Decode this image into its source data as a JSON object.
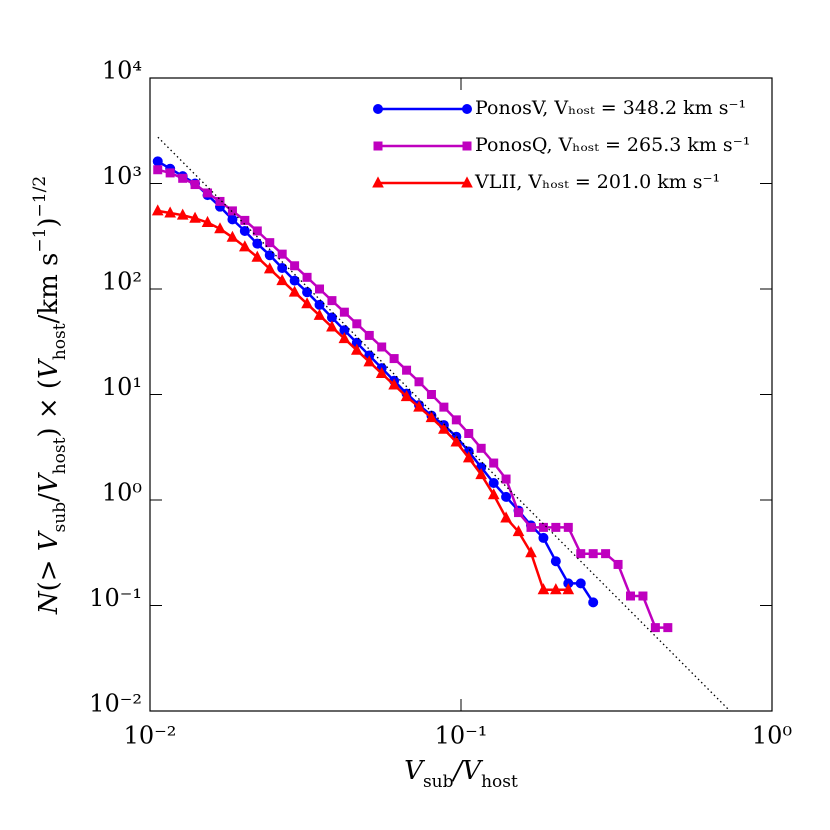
{
  "chart_data": {
    "type": "line",
    "xlabel": [
      "V",
      "sub",
      "/V",
      "host"
    ],
    "ylabel": [
      "N",
      "(> ",
      "V",
      "sub",
      "/",
      "V",
      "host",
      ") × (",
      "V",
      "host",
      "/km s",
      "−1",
      ")",
      "−1/2"
    ],
    "xscale": "log",
    "yscale": "log",
    "xlim": [
      0.01,
      1
    ],
    "ylim": [
      0.01,
      10000
    ],
    "xticks": [
      {
        "value": 0.01,
        "label": "10⁻²"
      },
      {
        "value": 0.1,
        "label": "10⁻¹"
      },
      {
        "value": 1,
        "label": "10⁰"
      }
    ],
    "yticks": [
      {
        "value": 0.01,
        "label": "10⁻²"
      },
      {
        "value": 0.1,
        "label": "10⁻¹"
      },
      {
        "value": 1,
        "label": "10⁰"
      },
      {
        "value": 10,
        "label": "10¹"
      },
      {
        "value": 100,
        "label": "10²"
      },
      {
        "value": 1000,
        "label": "10³"
      },
      {
        "value": 10000,
        "label": "10⁴"
      }
    ],
    "legend": "upper right",
    "series": [
      {
        "name": "PonosV, Vₕₒₛₜ = 348.2 km s⁻¹",
        "color": "#0000ff",
        "marker": "circle",
        "x": [
          0.01059,
          0.01161,
          0.01274,
          0.01396,
          0.01531,
          0.01679,
          0.01841,
          0.02018,
          0.02213,
          0.02427,
          0.02661,
          0.02917,
          0.03199,
          0.03508,
          0.03846,
          0.04217,
          0.04624,
          0.0507,
          0.05559,
          0.06095,
          0.06683,
          0.07328,
          0.08035,
          0.0881,
          0.09661,
          0.1059,
          0.1161,
          0.1274,
          0.1396,
          0.1531,
          0.1679,
          0.1841,
          0.2018,
          0.2213,
          0.2427,
          0.2661
        ],
        "values": [
          1622,
          1380,
          1175,
          1000,
          776,
          603,
          457,
          355,
          269,
          209,
          158,
          120,
          93.3,
          70.8,
          53.7,
          40.7,
          30.9,
          23.4,
          17.8,
          13.5,
          10.2,
          7.94,
          6.31,
          5.13,
          3.98,
          2.88,
          2.04,
          1.45,
          1.07,
          0.794,
          0.575,
          0.437,
          0.263,
          0.162,
          0.162,
          0.107
        ]
      },
      {
        "name": "PonosQ, Vₕₒₛₜ = 265.3 km s⁻¹",
        "color": "#bf00bf",
        "marker": "square",
        "x": [
          0.01059,
          0.01161,
          0.01274,
          0.01396,
          0.01531,
          0.01679,
          0.01841,
          0.02018,
          0.02213,
          0.02427,
          0.02661,
          0.02917,
          0.03199,
          0.03508,
          0.03846,
          0.04217,
          0.04624,
          0.0507,
          0.05559,
          0.06095,
          0.06683,
          0.07328,
          0.08035,
          0.0881,
          0.09661,
          0.1059,
          0.1161,
          0.1274,
          0.1396,
          0.1531,
          0.1679,
          0.1841,
          0.2018,
          0.2213,
          0.2427,
          0.2661,
          0.2917,
          0.3199,
          0.3508,
          0.3846,
          0.4217,
          0.4624
        ],
        "values": [
          1350,
          1260,
          1120,
          977,
          813,
          676,
          550,
          447,
          355,
          275,
          214,
          166,
          129,
          100,
          77.6,
          60.3,
          46.8,
          36.3,
          28.2,
          21.9,
          17.0,
          13.2,
          10.0,
          7.59,
          5.75,
          4.27,
          3.09,
          2.24,
          1.58,
          0.76,
          0.55,
          0.55,
          0.55,
          0.55,
          0.31,
          0.31,
          0.31,
          0.245,
          0.123,
          0.123,
          0.0617,
          0.0617
        ]
      },
      {
        "name": "VLII, Vₕₒₛₜ = 201.0 km s⁻¹",
        "color": "#ff0000",
        "marker": "triangle",
        "x": [
          0.01059,
          0.01161,
          0.01274,
          0.01396,
          0.01531,
          0.01679,
          0.01841,
          0.02018,
          0.02213,
          0.02427,
          0.02661,
          0.02917,
          0.03199,
          0.03508,
          0.03846,
          0.04217,
          0.04624,
          0.0507,
          0.05559,
          0.06095,
          0.06683,
          0.07328,
          0.08035,
          0.0881,
          0.09661,
          0.1059,
          0.1161,
          0.1274,
          0.1396,
          0.1531,
          0.1679,
          0.1841,
          0.2018,
          0.2213
        ],
        "values": [
          550,
          525,
          501,
          468,
          427,
          372,
          309,
          251,
          200,
          155,
          120,
          93.3,
          72.4,
          56.2,
          43.6,
          33.9,
          26.3,
          20.4,
          15.8,
          12.3,
          9.55,
          7.59,
          6.03,
          4.68,
          3.55,
          2.51,
          1.74,
          1.12,
          0.676,
          0.501,
          0.316,
          0.141,
          0.141,
          0.141
        ]
      },
      {
        "color": "#000000",
        "linestyle": "dotted",
        "x": [
          0.0106,
          0.733
        ],
        "values": [
          2750,
          0.01
        ]
      }
    ]
  }
}
